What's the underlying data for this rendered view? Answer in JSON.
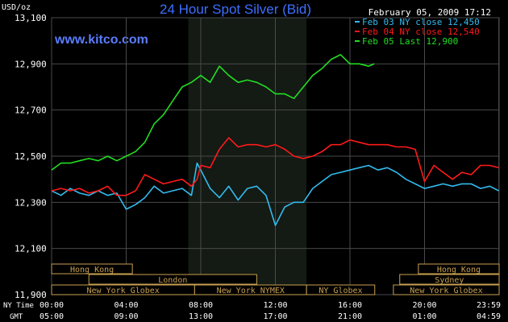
{
  "header": {
    "unit": "USD/oz",
    "title": "24 Hour Spot Silver (Bid)",
    "website": "www.kitco.com",
    "timestamp": "February 05, 2009 17:12"
  },
  "colors": {
    "background": "#000000",
    "plot_bg": "#000000",
    "nymex_shade": "#141a14",
    "grid": "#4a4a4a",
    "axis_text": "#ffffff",
    "title": "#3d6fff",
    "website": "#5a7dff",
    "series_feb03": "#33bbee",
    "series_feb04": "#ff1a1a",
    "series_feb05": "#22dd22",
    "market_box": "#c8a050"
  },
  "chart_data": {
    "type": "line",
    "title": "24 Hour Spot Silver (Bid)",
    "ylabel": "USD/oz",
    "ylim": [
      11.9,
      13.1
    ],
    "yticks": [
      13.1,
      12.9,
      12.7,
      12.5,
      12.3,
      12.1,
      11.9
    ],
    "ytick_labels": [
      "13,100",
      "12,900",
      "12,700",
      "12,500",
      "12,300",
      "12,100",
      "11,900"
    ],
    "x_hours": [
      0,
      4,
      8,
      12,
      16,
      20,
      23.98
    ],
    "x_labels_ny": [
      "00:00",
      "04:00",
      "08:00",
      "12:00",
      "16:00",
      "20:00",
      "23:59"
    ],
    "x_labels_gmt": [
      "05:00",
      "09:00",
      "13:00",
      "17:00",
      "21:00",
      "01:00",
      "04:59"
    ],
    "x_row_labels": [
      "NY Time",
      "GMT"
    ],
    "nymex_session": [
      7.33,
      13.67
    ],
    "grid": true,
    "legend_position": "top-right",
    "series": [
      {
        "name": "Feb 03 NY close 12,450",
        "color": "#33bbee",
        "x": [
          0,
          0.5,
          1,
          1.5,
          2,
          2.5,
          3,
          3.5,
          4,
          4.5,
          5,
          5.5,
          6,
          6.5,
          7,
          7.5,
          7.8,
          8,
          8.5,
          9,
          9.5,
          10,
          10.5,
          11,
          11.5,
          12,
          12.5,
          13,
          13.5,
          14,
          14.5,
          15,
          15.5,
          16,
          16.5,
          17,
          17.5,
          18,
          18.5,
          19,
          19.5,
          20,
          20.5,
          21,
          21.5,
          22,
          22.5,
          23,
          23.5,
          23.98
        ],
        "y": [
          12.35,
          12.33,
          12.36,
          12.34,
          12.33,
          12.35,
          12.33,
          12.34,
          12.27,
          12.29,
          12.32,
          12.37,
          12.34,
          12.35,
          12.36,
          12.33,
          12.47,
          12.44,
          12.36,
          12.32,
          12.37,
          12.31,
          12.36,
          12.37,
          12.33,
          12.2,
          12.28,
          12.3,
          12.3,
          12.36,
          12.39,
          12.42,
          12.43,
          12.44,
          12.45,
          12.46,
          12.44,
          12.45,
          12.43,
          12.4,
          12.38,
          12.36,
          12.37,
          12.38,
          12.37,
          12.38,
          12.38,
          12.36,
          12.37,
          12.35
        ]
      },
      {
        "name": "Feb 04 NY close 12,540",
        "color": "#ff1a1a",
        "x": [
          0,
          0.5,
          1,
          1.5,
          2,
          2.5,
          3,
          3.5,
          4,
          4.5,
          5,
          5.5,
          6,
          6.5,
          7,
          7.5,
          7.8,
          8,
          8.5,
          9,
          9.5,
          10,
          10.5,
          11,
          11.5,
          12,
          12.5,
          13,
          13.5,
          14,
          14.5,
          15,
          15.5,
          16,
          16.5,
          17,
          17.5,
          18,
          18.5,
          19,
          19.5,
          20,
          20.5,
          21,
          21.5,
          22,
          22.5,
          23,
          23.5,
          23.98
        ],
        "y": [
          12.35,
          12.36,
          12.35,
          12.36,
          12.34,
          12.35,
          12.37,
          12.33,
          12.33,
          12.35,
          12.42,
          12.4,
          12.38,
          12.39,
          12.4,
          12.37,
          12.4,
          12.46,
          12.45,
          12.53,
          12.58,
          12.54,
          12.55,
          12.55,
          12.54,
          12.55,
          12.53,
          12.5,
          12.49,
          12.5,
          12.52,
          12.55,
          12.55,
          12.57,
          12.56,
          12.55,
          12.55,
          12.55,
          12.54,
          12.54,
          12.53,
          12.39,
          12.46,
          12.43,
          12.4,
          12.43,
          12.42,
          12.46,
          12.46,
          12.45
        ]
      },
      {
        "name": "Feb 05 Last 12,900",
        "color": "#22dd22",
        "x": [
          0,
          0.5,
          1,
          1.5,
          2,
          2.5,
          3,
          3.5,
          4,
          4.5,
          5,
          5.5,
          6,
          6.5,
          7,
          7.5,
          8,
          8.5,
          9,
          9.5,
          10,
          10.5,
          11,
          11.5,
          12,
          12.5,
          13,
          13.5,
          14,
          14.5,
          15,
          15.5,
          16,
          16.5,
          17,
          17.3
        ],
        "y": [
          12.44,
          12.47,
          12.47,
          12.48,
          12.49,
          12.48,
          12.5,
          12.48,
          12.5,
          12.52,
          12.56,
          12.64,
          12.68,
          12.74,
          12.8,
          12.82,
          12.85,
          12.82,
          12.89,
          12.85,
          12.82,
          12.83,
          12.82,
          12.8,
          12.77,
          12.77,
          12.75,
          12.8,
          12.85,
          12.88,
          12.92,
          12.94,
          12.9,
          12.9,
          12.89,
          12.9
        ]
      }
    ]
  },
  "markets": {
    "row1": [
      {
        "label": "Hong Kong",
        "start": 0,
        "end": 4.33
      },
      {
        "label": "Hong Kong",
        "start": 19.67,
        "end": 24
      }
    ],
    "row2": [
      {
        "label": "London",
        "start": 2.0,
        "end": 11.0
      },
      {
        "label": "Sydney",
        "start": 18.67,
        "end": 24
      }
    ],
    "row3": [
      {
        "label": "New York Globex",
        "start": 0,
        "end": 7.67
      },
      {
        "label": "New York NYMEX",
        "start": 7.67,
        "end": 13.67
      },
      {
        "label": "NY Globex",
        "start": 13.67,
        "end": 17.33
      },
      {
        "label": "New York Globex",
        "start": 18.33,
        "end": 24
      }
    ]
  }
}
